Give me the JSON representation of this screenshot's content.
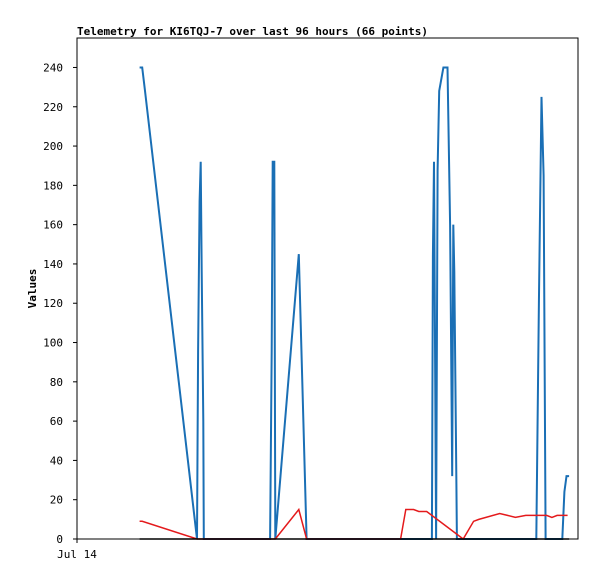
{
  "chart_data": {
    "type": "line",
    "title": "Telemetry for KI6TQJ-7 over last 96 hours (66 points)",
    "xlabel": "",
    "ylabel": "Values",
    "x_tick_labels": [
      "Jul 14"
    ],
    "y_ticks": [
      0,
      20,
      40,
      60,
      80,
      100,
      120,
      140,
      160,
      180,
      200,
      220,
      240
    ],
    "xlim": [
      0,
      96
    ],
    "ylim": [
      0,
      255
    ],
    "grid": false,
    "legend": "none",
    "series": [
      {
        "color": "#1a6fb5",
        "points": [
          [
            12.0,
            240
          ],
          [
            12.5,
            240
          ],
          [
            13.0,
            229
          ],
          [
            23.0,
            0
          ],
          [
            23.2,
            96
          ],
          [
            23.5,
            172
          ],
          [
            23.7,
            192
          ],
          [
            23.9,
            136
          ],
          [
            24.2,
            60
          ],
          [
            24.3,
            0
          ],
          [
            37.0,
            0
          ],
          [
            37.3,
            96
          ],
          [
            37.5,
            192
          ],
          [
            37.8,
            192
          ],
          [
            38.0,
            0
          ],
          [
            42.5,
            145
          ],
          [
            44.0,
            0
          ],
          [
            68.0,
            0
          ],
          [
            68.2,
            144
          ],
          [
            68.4,
            192
          ],
          [
            68.8,
            0
          ],
          [
            69.1,
            188
          ],
          [
            69.4,
            228
          ],
          [
            70.2,
            240
          ],
          [
            71.0,
            240
          ],
          [
            71.5,
            160
          ],
          [
            71.9,
            32
          ],
          [
            72.1,
            160
          ],
          [
            72.3,
            136
          ],
          [
            72.7,
            28
          ],
          [
            72.8,
            0
          ],
          [
            88.0,
            0
          ],
          [
            88.5,
            120
          ],
          [
            89.0,
            225
          ],
          [
            89.4,
            185
          ],
          [
            89.8,
            0
          ],
          [
            93.0,
            0
          ],
          [
            93.4,
            24
          ],
          [
            93.8,
            32
          ],
          [
            94.3,
            32
          ]
        ]
      },
      {
        "color": "#e41a1c",
        "points": [
          [
            12.0,
            9
          ],
          [
            12.5,
            9
          ],
          [
            23.0,
            0
          ],
          [
            38.0,
            0
          ],
          [
            42.5,
            15
          ],
          [
            44.0,
            0
          ],
          [
            62.0,
            0
          ],
          [
            63.0,
            15
          ],
          [
            64.5,
            15
          ],
          [
            65.5,
            14
          ],
          [
            67.0,
            14
          ],
          [
            74.0,
            0
          ],
          [
            76.0,
            9
          ],
          [
            77.0,
            10
          ],
          [
            81.0,
            13
          ],
          [
            82.5,
            12
          ],
          [
            84.0,
            11
          ],
          [
            86.0,
            12
          ],
          [
            90.0,
            12
          ],
          [
            91.0,
            11
          ],
          [
            92.0,
            12
          ],
          [
            94.0,
            12
          ]
        ]
      },
      {
        "color": "#000000",
        "points": [
          [
            12.0,
            0
          ],
          [
            94.3,
            0
          ]
        ]
      }
    ]
  }
}
